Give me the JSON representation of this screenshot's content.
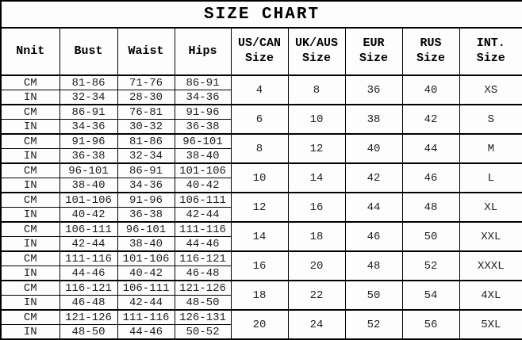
{
  "chart_data": {
    "type": "table",
    "title": "SIZE CHART",
    "columns": [
      {
        "l1": "Nnit",
        "l2": ""
      },
      {
        "l1": "Bust",
        "l2": ""
      },
      {
        "l1": "Waist",
        "l2": ""
      },
      {
        "l1": "Hips",
        "l2": ""
      },
      {
        "l1": "US/CAN",
        "l2": "Size"
      },
      {
        "l1": "UK/AUS",
        "l2": "Size"
      },
      {
        "l1": "EUR",
        "l2": "Size"
      },
      {
        "l1": "RUS",
        "l2": "Size"
      },
      {
        "l1": "INT.",
        "l2": "Size"
      }
    ],
    "unit_labels": {
      "cm": "CM",
      "in": "IN"
    },
    "groups": [
      {
        "cm": {
          "unit": "CM",
          "bust": "81-86",
          "waist": "71-76",
          "hips": "86-91"
        },
        "in": {
          "unit": "IN",
          "bust": "32-34",
          "waist": "28-30",
          "hips": "34-36"
        },
        "us_can": "4",
        "uk_aus": "8",
        "eur": "36",
        "rus": "40",
        "int": "XS"
      },
      {
        "cm": {
          "unit": "CM",
          "bust": "86-91",
          "waist": "76-81",
          "hips": "91-96"
        },
        "in": {
          "unit": "IN",
          "bust": "34-36",
          "waist": "30-32",
          "hips": "36-38"
        },
        "us_can": "6",
        "uk_aus": "10",
        "eur": "38",
        "rus": "42",
        "int": "S"
      },
      {
        "cm": {
          "unit": "CM",
          "bust": "91-96",
          "waist": "81-86",
          "hips": "96-101"
        },
        "in": {
          "unit": "IN",
          "bust": "36-38",
          "waist": "32-34",
          "hips": "38-40"
        },
        "us_can": "8",
        "uk_aus": "12",
        "eur": "40",
        "rus": "44",
        "int": "M"
      },
      {
        "cm": {
          "unit": "CM",
          "bust": "96-101",
          "waist": "86-91",
          "hips": "101-106"
        },
        "in": {
          "unit": "IN",
          "bust": "38-40",
          "waist": "34-36",
          "hips": "40-42"
        },
        "us_can": "10",
        "uk_aus": "14",
        "eur": "42",
        "rus": "46",
        "int": "L"
      },
      {
        "cm": {
          "unit": "CM",
          "bust": "101-106",
          "waist": "91-96",
          "hips": "106-111"
        },
        "in": {
          "unit": "IN",
          "bust": "40-42",
          "waist": "36-38",
          "hips": "42-44"
        },
        "us_can": "12",
        "uk_aus": "16",
        "eur": "44",
        "rus": "48",
        "int": "XL"
      },
      {
        "cm": {
          "unit": "CM",
          "bust": "106-111",
          "waist": "96-101",
          "hips": "111-116"
        },
        "in": {
          "unit": "IN",
          "bust": "42-44",
          "waist": "38-40",
          "hips": "44-46"
        },
        "us_can": "14",
        "uk_aus": "18",
        "eur": "46",
        "rus": "50",
        "int": "XXL"
      },
      {
        "cm": {
          "unit": "CM",
          "bust": "111-116",
          "waist": "101-106",
          "hips": "116-121"
        },
        "in": {
          "unit": "IN",
          "bust": "44-46",
          "waist": "40-42",
          "hips": "46-48"
        },
        "us_can": "16",
        "uk_aus": "20",
        "eur": "48",
        "rus": "52",
        "int": "XXXL"
      },
      {
        "cm": {
          "unit": "CM",
          "bust": "116-121",
          "waist": "106-111",
          "hips": "121-126"
        },
        "in": {
          "unit": "IN",
          "bust": "46-48",
          "waist": "42-44",
          "hips": "48-50"
        },
        "us_can": "18",
        "uk_aus": "22",
        "eur": "50",
        "rus": "54",
        "int": "4XL"
      },
      {
        "cm": {
          "unit": "CM",
          "bust": "121-126",
          "waist": "111-116",
          "hips": "126-131"
        },
        "in": {
          "unit": "IN",
          "bust": "48-50",
          "waist": "44-46",
          "hips": "50-52"
        },
        "us_can": "20",
        "uk_aus": "24",
        "eur": "52",
        "rus": "56",
        "int": "5XL"
      }
    ],
    "colors": {
      "background": "#ffffff",
      "grid": "#000000",
      "text": "#1f1f1f"
    }
  }
}
